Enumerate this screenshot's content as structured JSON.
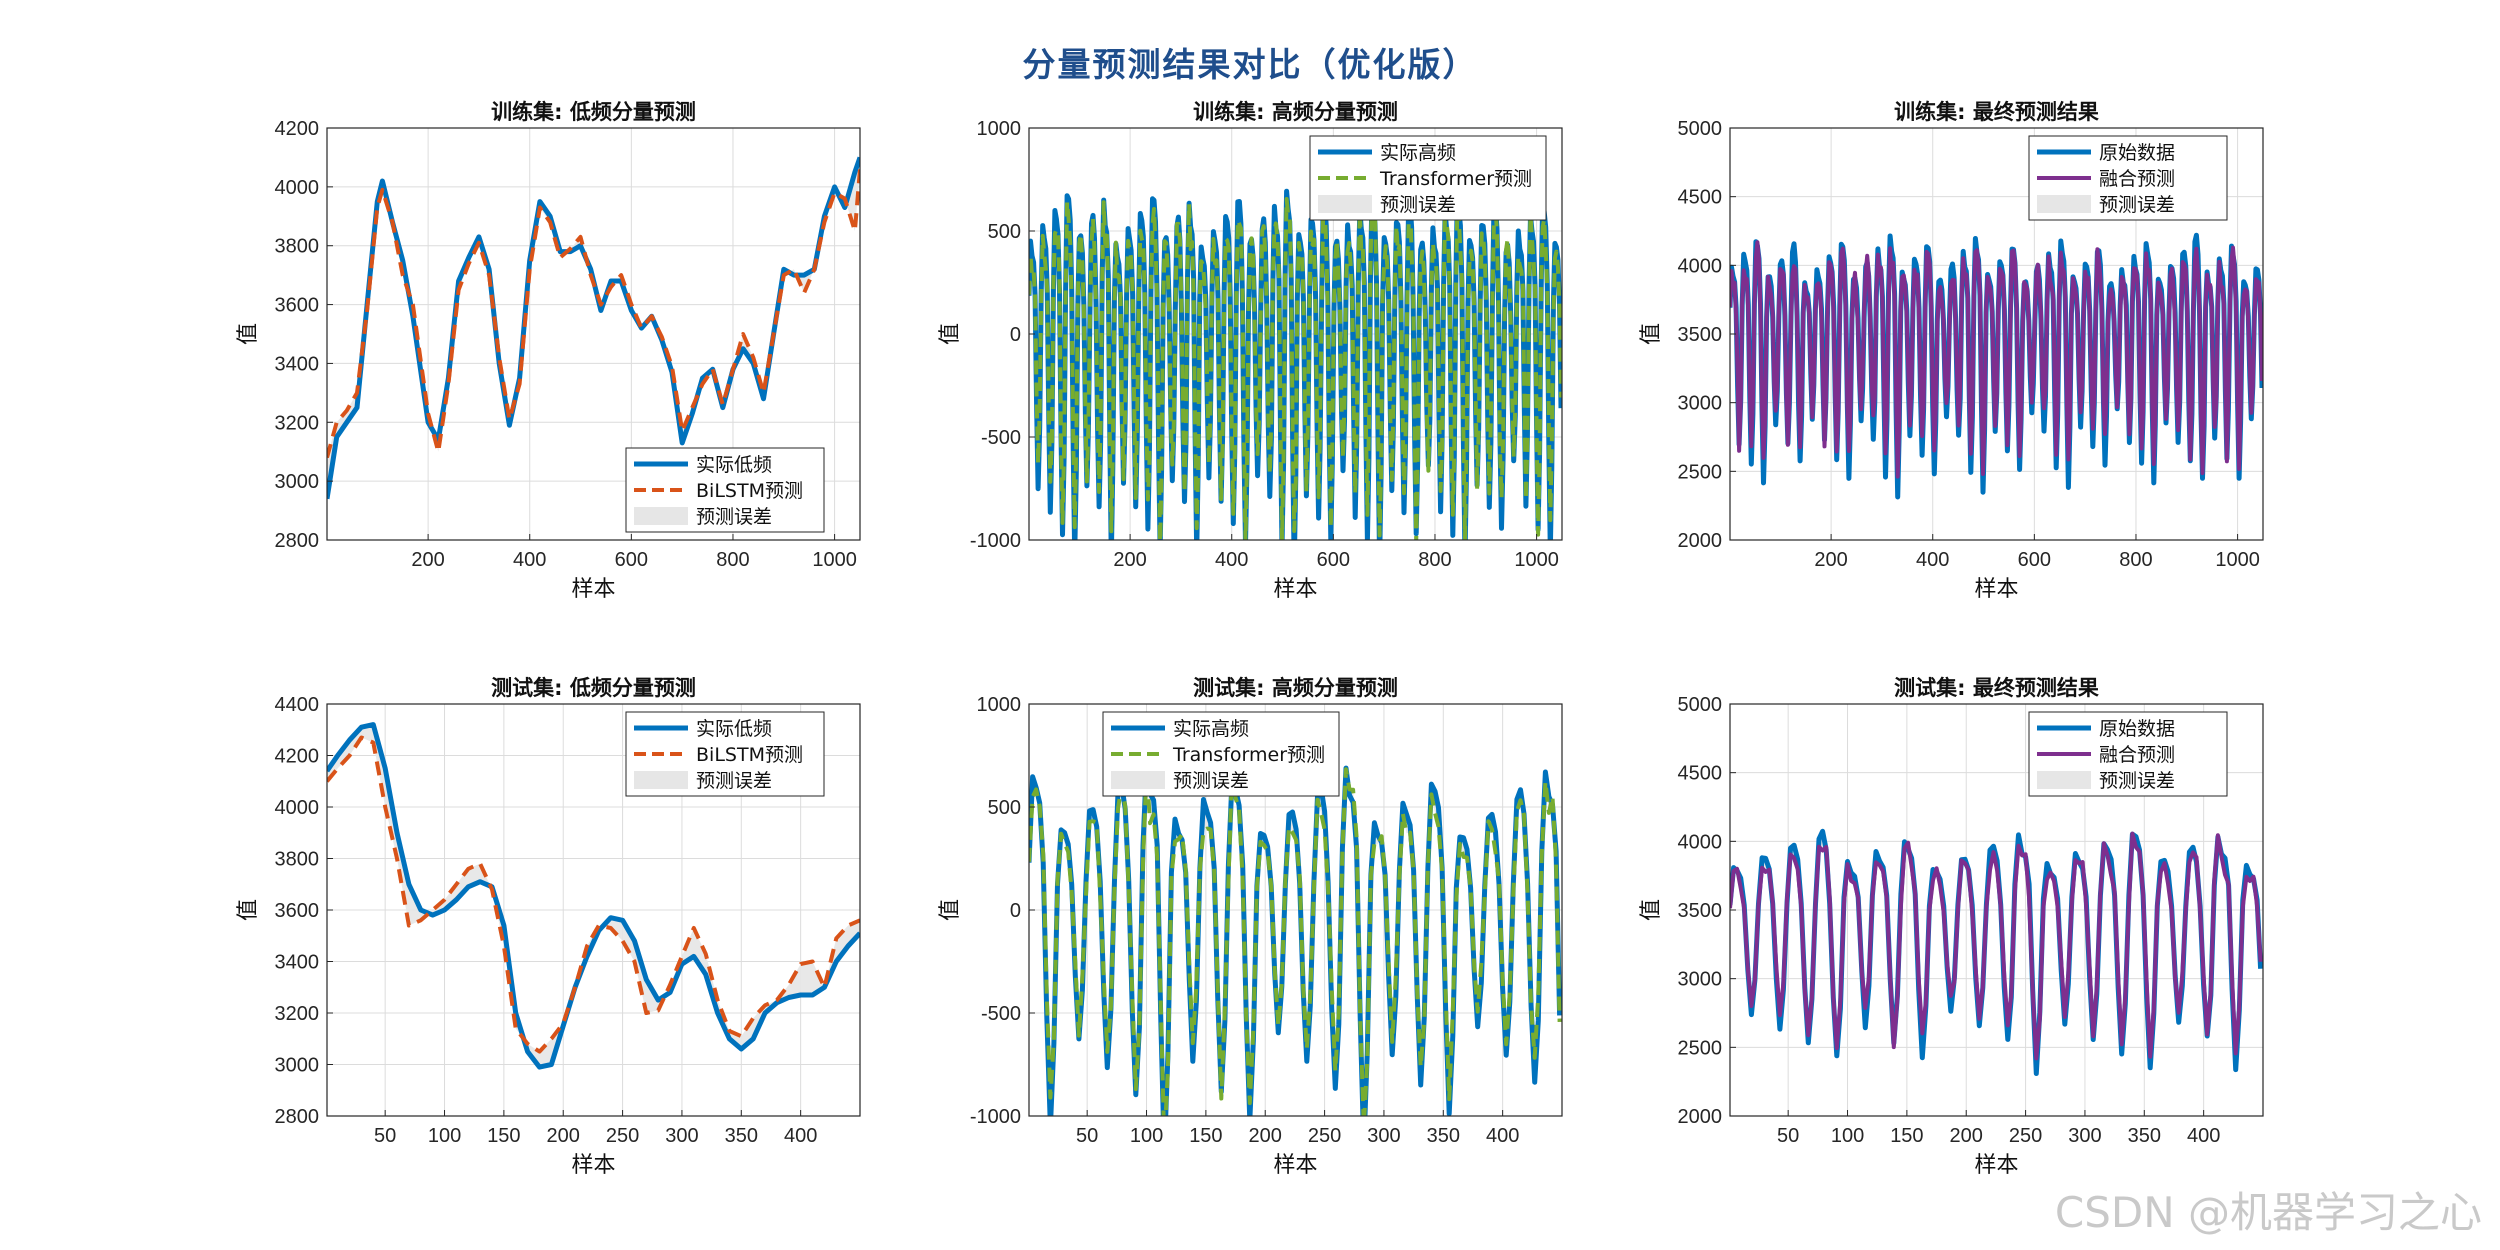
{
  "figure": {
    "title": "分量预测结果对比（优化版）",
    "watermark": "CSDN @机器学习之心"
  },
  "colors": {
    "blue": "#0072BD",
    "orange": "#D95319",
    "green": "#77AC30",
    "purple": "#7E2F8E",
    "error_fill": "#e6e6e6",
    "grid": "#dcdcdc",
    "axis": "#262626"
  },
  "chart_data": [
    {
      "id": "train-low",
      "type": "line",
      "title": "训练集: 低频分量预测",
      "xlabel": "样本",
      "ylabel": "值",
      "xlim": [
        1,
        1050
      ],
      "ylim": [
        2800,
        4200
      ],
      "xticks": [
        200,
        400,
        600,
        800,
        1000
      ],
      "yticks": [
        2800,
        3000,
        3200,
        3400,
        3600,
        3800,
        4000,
        4200
      ],
      "grid": true,
      "legend_position": "bottom-right",
      "legend": [
        "实际低频",
        "BiLSTM预测",
        "预测误差"
      ],
      "series": [
        {
          "name": "实际低频",
          "style": "solid",
          "color": "#0072BD",
          "x": [
            1,
            20,
            40,
            60,
            80,
            100,
            110,
            130,
            150,
            170,
            200,
            220,
            240,
            260,
            280,
            300,
            320,
            340,
            360,
            380,
            400,
            420,
            440,
            460,
            480,
            500,
            520,
            540,
            560,
            580,
            600,
            620,
            640,
            660,
            680,
            700,
            720,
            740,
            760,
            780,
            800,
            820,
            840,
            860,
            880,
            900,
            920,
            940,
            960,
            980,
            1000,
            1020,
            1040,
            1050
          ],
          "values": [
            2940,
            3150,
            3200,
            3250,
            3600,
            3950,
            4020,
            3880,
            3750,
            3560,
            3200,
            3140,
            3350,
            3680,
            3760,
            3830,
            3720,
            3400,
            3190,
            3350,
            3750,
            3950,
            3900,
            3780,
            3780,
            3800,
            3720,
            3580,
            3680,
            3680,
            3580,
            3520,
            3560,
            3480,
            3370,
            3130,
            3230,
            3350,
            3380,
            3250,
            3380,
            3450,
            3400,
            3280,
            3500,
            3720,
            3700,
            3700,
            3720,
            3900,
            4000,
            3930,
            4050,
            4100
          ]
        },
        {
          "name": "BiLSTM预测",
          "style": "dashed",
          "color": "#D95319",
          "x": [
            1,
            20,
            40,
            60,
            80,
            100,
            110,
            130,
            150,
            170,
            200,
            220,
            240,
            260,
            280,
            300,
            320,
            340,
            360,
            380,
            400,
            420,
            440,
            460,
            480,
            500,
            520,
            540,
            560,
            580,
            600,
            620,
            640,
            660,
            680,
            700,
            720,
            740,
            760,
            780,
            800,
            820,
            840,
            860,
            880,
            900,
            920,
            940,
            960,
            980,
            1000,
            1020,
            1040,
            1050
          ],
          "values": [
            3080,
            3200,
            3240,
            3300,
            3580,
            3930,
            3990,
            3880,
            3700,
            3600,
            3230,
            3100,
            3330,
            3650,
            3740,
            3810,
            3700,
            3420,
            3210,
            3330,
            3720,
            3930,
            3880,
            3760,
            3790,
            3830,
            3700,
            3600,
            3660,
            3700,
            3600,
            3520,
            3560,
            3490,
            3390,
            3170,
            3250,
            3330,
            3380,
            3260,
            3380,
            3500,
            3420,
            3300,
            3500,
            3700,
            3720,
            3640,
            3720,
            3880,
            3980,
            3960,
            3850,
            4060
          ]
        }
      ]
    },
    {
      "id": "train-high",
      "type": "line",
      "title": "训练集: 高频分量预测",
      "xlabel": "样本",
      "ylabel": "值",
      "xlim": [
        1,
        1050
      ],
      "ylim": [
        -1000,
        1000
      ],
      "xticks": [
        200,
        400,
        600,
        800,
        1000
      ],
      "yticks": [
        -1000,
        -500,
        0,
        500,
        1000
      ],
      "grid": true,
      "legend_position": "top-right",
      "legend": [
        "实际高频",
        "Transformer预测",
        "预测误差"
      ],
      "dense_oscillation": {
        "start": 1,
        "end": 1050,
        "period": 24,
        "amplitude": [
          520,
          880
        ],
        "center": 0
      },
      "series": [
        {
          "name": "实际高频",
          "style": "solid",
          "color": "#0072BD"
        },
        {
          "name": "Transformer预测",
          "style": "dashed",
          "color": "#77AC30"
        }
      ]
    },
    {
      "id": "train-final",
      "type": "line",
      "title": "训练集: 最终预测结果",
      "xlabel": "样本",
      "ylabel": "值",
      "xlim": [
        1,
        1050
      ],
      "ylim": [
        2000,
        5000
      ],
      "xticks": [
        200,
        400,
        600,
        800,
        1000
      ],
      "yticks": [
        2000,
        2500,
        3000,
        3500,
        4000,
        4500,
        5000
      ],
      "grid": true,
      "legend_position": "top-right",
      "legend": [
        "原始数据",
        "融合预测",
        "预测误差"
      ],
      "dense_oscillation": {
        "start": 1,
        "end": 1050,
        "period": 24,
        "amplitude": [
          450,
          900
        ],
        "center": 3500
      },
      "series": [
        {
          "name": "原始数据",
          "style": "solid",
          "color": "#0072BD"
        },
        {
          "name": "融合预测",
          "style": "solid",
          "color": "#7E2F8E"
        }
      ]
    },
    {
      "id": "test-low",
      "type": "line",
      "title": "测试集: 低频分量预测",
      "xlabel": "样本",
      "ylabel": "值",
      "xlim": [
        1,
        450
      ],
      "ylim": [
        2800,
        4400
      ],
      "xticks": [
        50,
        100,
        150,
        200,
        250,
        300,
        350,
        400
      ],
      "yticks": [
        2800,
        3000,
        3200,
        3400,
        3600,
        3800,
        4000,
        4200,
        4400
      ],
      "grid": true,
      "legend_position": "top-right",
      "legend": [
        "实际低频",
        "BiLSTM预测",
        "预测误差"
      ],
      "series": [
        {
          "name": "实际低频",
          "style": "solid",
          "color": "#0072BD",
          "x": [
            1,
            10,
            20,
            30,
            40,
            50,
            60,
            70,
            80,
            90,
            100,
            110,
            120,
            130,
            140,
            150,
            160,
            170,
            180,
            190,
            200,
            210,
            220,
            230,
            240,
            250,
            260,
            270,
            280,
            290,
            300,
            310,
            320,
            330,
            340,
            350,
            360,
            370,
            380,
            390,
            400,
            410,
            420,
            430,
            440,
            450
          ],
          "values": [
            4140,
            4200,
            4260,
            4310,
            4320,
            4150,
            3900,
            3700,
            3600,
            3580,
            3600,
            3640,
            3690,
            3710,
            3690,
            3540,
            3200,
            3050,
            2990,
            3000,
            3150,
            3300,
            3420,
            3520,
            3570,
            3560,
            3480,
            3330,
            3250,
            3280,
            3390,
            3420,
            3350,
            3200,
            3100,
            3060,
            3100,
            3200,
            3240,
            3260,
            3270,
            3270,
            3300,
            3400,
            3460,
            3510
          ]
        },
        {
          "name": "BiLSTM预测",
          "style": "dashed",
          "color": "#D95319",
          "x": [
            1,
            10,
            20,
            30,
            40,
            50,
            60,
            70,
            80,
            90,
            100,
            110,
            120,
            130,
            140,
            150,
            160,
            170,
            180,
            190,
            200,
            210,
            220,
            230,
            240,
            250,
            260,
            270,
            280,
            290,
            300,
            310,
            320,
            330,
            340,
            350,
            360,
            370,
            380,
            390,
            400,
            410,
            420,
            430,
            440,
            450
          ],
          "values": [
            4100,
            4150,
            4200,
            4270,
            4250,
            4000,
            3800,
            3540,
            3560,
            3600,
            3640,
            3700,
            3760,
            3780,
            3680,
            3460,
            3140,
            3080,
            3050,
            3100,
            3160,
            3300,
            3460,
            3540,
            3530,
            3480,
            3400,
            3200,
            3210,
            3310,
            3420,
            3530,
            3430,
            3250,
            3130,
            3110,
            3180,
            3230,
            3250,
            3310,
            3390,
            3400,
            3300,
            3490,
            3540,
            3560
          ]
        }
      ]
    },
    {
      "id": "test-high",
      "type": "line",
      "title": "测试集: 高频分量预测",
      "xlabel": "样本",
      "ylabel": "值",
      "xlim": [
        1,
        450
      ],
      "ylim": [
        -1000,
        1000
      ],
      "xticks": [
        50,
        100,
        150,
        200,
        250,
        300,
        350,
        400
      ],
      "yticks": [
        -1000,
        -500,
        0,
        500,
        1000
      ],
      "grid": true,
      "legend_position": "top-left",
      "legend": [
        "实际高频",
        "Transformer预测",
        "预测误差"
      ],
      "dense_oscillation": {
        "start": 1,
        "end": 450,
        "period": 24,
        "amplitude": [
          450,
          900
        ],
        "center": 0
      },
      "series": [
        {
          "name": "实际高频",
          "style": "solid",
          "color": "#0072BD"
        },
        {
          "name": "Transformer预测",
          "style": "dashed",
          "color": "#77AC30"
        }
      ]
    },
    {
      "id": "test-final",
      "type": "line",
      "title": "测试集: 最终预测结果",
      "xlabel": "样本",
      "ylabel": "值",
      "xlim": [
        1,
        450
      ],
      "ylim": [
        2000,
        5000
      ],
      "xticks": [
        50,
        100,
        150,
        200,
        250,
        300,
        350,
        400
      ],
      "yticks": [
        2000,
        2500,
        3000,
        3500,
        4000,
        4500,
        5000
      ],
      "grid": true,
      "legend_position": "top-right",
      "legend": [
        "原始数据",
        "融合预测",
        "预测误差"
      ],
      "dense_oscillation": {
        "start": 1,
        "end": 450,
        "period": 24,
        "amplitude": [
          500,
          850
        ],
        "center": 3400
      },
      "series": [
        {
          "name": "原始数据",
          "style": "solid",
          "color": "#0072BD"
        },
        {
          "name": "融合预测",
          "style": "solid",
          "color": "#7E2F8E"
        }
      ]
    }
  ]
}
